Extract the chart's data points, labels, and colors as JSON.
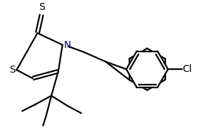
{
  "line_color": "#000000",
  "line_width": 1.6,
  "bg_color": "#ffffff",
  "label_S_thione": "S",
  "label_N": "N",
  "label_S_ring": "S",
  "label_Cl": "Cl",
  "N_color": "#00008B",
  "Cl_color": "#000000"
}
